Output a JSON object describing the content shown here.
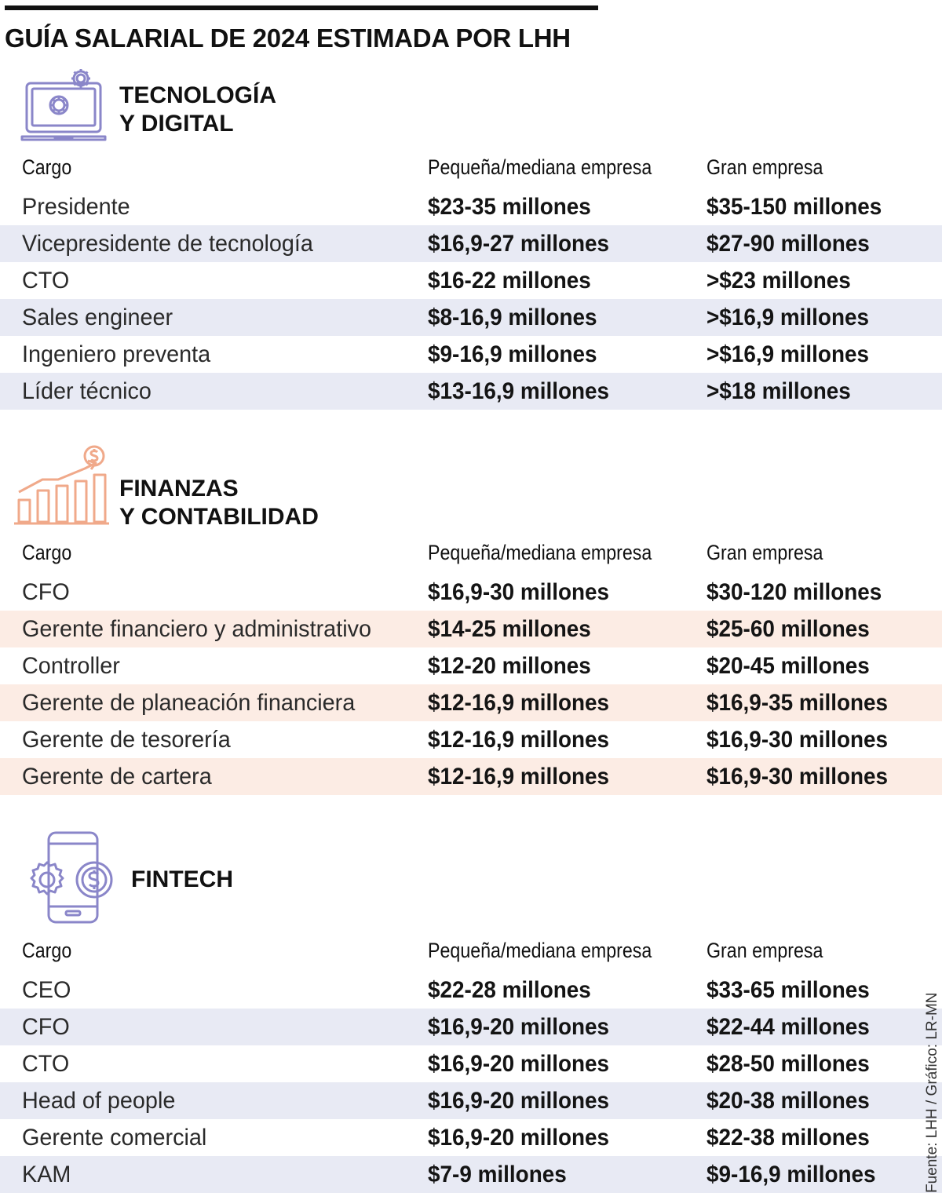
{
  "title": "GUÍA SALARIAL DE 2024 ESTIMADA POR LHH",
  "source": "Fuente: LHH / Gráfico: LR-MN",
  "colors": {
    "tech_icon": "#8a86c9",
    "tech_row_band": "#e8eaf4",
    "finance_icon": "#f0a98a",
    "finance_row_band": "#fcece4",
    "fintech_icon": "#8a86c9",
    "fintech_row_band": "#e8eaf4"
  },
  "sections": [
    {
      "icon": "laptop-gears-icon",
      "title_line1": "TECNOLOGÍA",
      "title_line2": "Y DIGITAL",
      "columns": [
        "Cargo",
        "Pequeña/mediana empresa",
        "Gran empresa"
      ],
      "rows": [
        {
          "cargo": "Presidente",
          "pyme": "$23-35 millones",
          "gran": "$35-150 millones"
        },
        {
          "cargo": "Vicepresidente de tecnología",
          "pyme": "$16,9-27 millones",
          "gran": "$27-90 millones"
        },
        {
          "cargo": "CTO",
          "pyme": "$16-22 millones",
          "gran": ">$23 millones"
        },
        {
          "cargo": "Sales engineer",
          "pyme": "$8-16,9 millones",
          "gran": ">$16,9 millones"
        },
        {
          "cargo": "Ingeniero preventa",
          "pyme": "$9-16,9 millones",
          "gran": ">$16,9 millones"
        },
        {
          "cargo": "Líder técnico",
          "pyme": "$13-16,9 millones",
          "gran": ">$18 millones"
        }
      ]
    },
    {
      "icon": "growth-chart-dollar-icon",
      "title_line1": "FINANZAS",
      "title_line2": "Y CONTABILIDAD",
      "columns": [
        "Cargo",
        "Pequeña/mediana empresa",
        "Gran empresa"
      ],
      "rows": [
        {
          "cargo": "CFO",
          "pyme": "$16,9-30 millones",
          "gran": "$30-120 millones"
        },
        {
          "cargo": "Gerente financiero y administrativo",
          "pyme": "$14-25 millones",
          "gran": "$25-60 millones"
        },
        {
          "cargo": "Controller",
          "pyme": "$12-20 millones",
          "gran": "$20-45 millones"
        },
        {
          "cargo": "Gerente de planeación financiera",
          "pyme": "$12-16,9 millones",
          "gran": "$16,9-35 millones"
        },
        {
          "cargo": "Gerente de tesorería",
          "pyme": "$12-16,9 millones",
          "gran": "$16,9-30 millones"
        },
        {
          "cargo": "Gerente de cartera",
          "pyme": "$12-16,9 millones",
          "gran": "$16,9-30 millones"
        }
      ]
    },
    {
      "icon": "phone-gear-dollar-icon",
      "title_line1": "FINTECH",
      "title_line2": "",
      "columns": [
        "Cargo",
        "Pequeña/mediana empresa",
        "Gran empresa"
      ],
      "rows": [
        {
          "cargo": "CEO",
          "pyme": "$22-28 millones",
          "gran": "$33-65 millones"
        },
        {
          "cargo": "CFO",
          "pyme": "$16,9-20 millones",
          "gran": "$22-44 millones"
        },
        {
          "cargo": "CTO",
          "pyme": "$16,9-20 millones",
          "gran": "$28-50 millones"
        },
        {
          "cargo": "Head of people",
          "pyme": "$16,9-20 millones",
          "gran": "$20-38 millones"
        },
        {
          "cargo": "Gerente comercial",
          "pyme": "$16,9-20 millones",
          "gran": "$22-38 millones"
        },
        {
          "cargo": "KAM",
          "pyme": "$7-9 millones",
          "gran": "$9-16,9 millones"
        }
      ]
    }
  ]
}
